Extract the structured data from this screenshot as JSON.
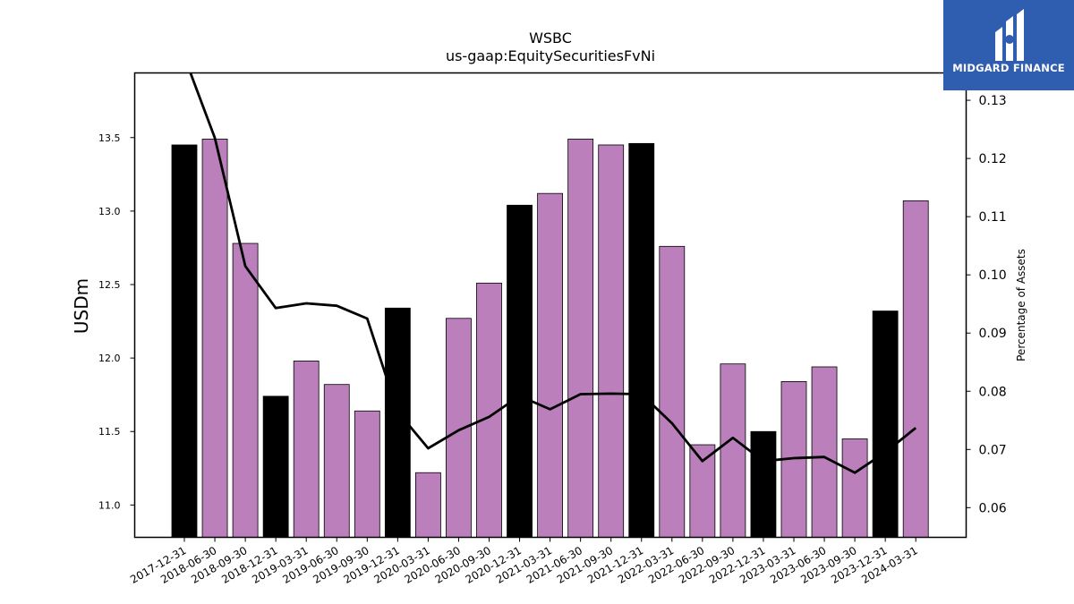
{
  "brand": {
    "name": "MIDGARD FINANCE",
    "bg_color": "#2f5db0"
  },
  "colors": {
    "bar_black": "#000000",
    "bar_purple": "#bb7fbc",
    "line": "#000000"
  },
  "chart_data": {
    "type": "bar",
    "title": "WSBC",
    "subtitle": "us-gaap:EquitySecuritiesFvNi",
    "ylabel": "USDm",
    "y2label": "Percentage of Assets",
    "categories": [
      "2017-12-31",
      "2018-06-30",
      "2018-09-30",
      "2018-12-31",
      "2019-03-31",
      "2019-06-30",
      "2019-09-30",
      "2019-12-31",
      "2020-03-31",
      "2020-06-30",
      "2020-09-30",
      "2020-12-31",
      "2021-03-31",
      "2021-06-30",
      "2021-09-30",
      "2021-12-31",
      "2022-03-31",
      "2022-06-30",
      "2022-09-30",
      "2022-12-31",
      "2023-03-31",
      "2023-06-30",
      "2023-09-30",
      "2023-12-31",
      "2024-03-31"
    ],
    "series": [
      {
        "axis": "left",
        "kind": "bar",
        "values": [
          13.45,
          13.49,
          12.78,
          11.74,
          11.98,
          11.82,
          11.64,
          12.34,
          11.22,
          12.27,
          12.51,
          13.04,
          13.12,
          13.49,
          13.45,
          13.46,
          12.76,
          11.41,
          11.96,
          11.5,
          11.84,
          11.94,
          11.45,
          12.32,
          13.07
        ],
        "highlight": [
          true,
          false,
          false,
          true,
          false,
          false,
          false,
          true,
          false,
          false,
          false,
          true,
          false,
          false,
          false,
          true,
          false,
          false,
          false,
          true,
          false,
          false,
          false,
          true,
          false
        ]
      },
      {
        "axis": "right",
        "kind": "line",
        "values": [
          0.1375,
          0.1235,
          0.1015,
          0.0943,
          0.0951,
          0.0947,
          0.0925,
          0.0765,
          0.0702,
          0.0733,
          0.0756,
          0.0792,
          0.0769,
          0.0795,
          0.0796,
          0.0795,
          0.0745,
          0.068,
          0.072,
          0.068,
          0.0685,
          0.0687,
          0.066,
          0.0695,
          0.0737
        ]
      }
    ],
    "ylim": [
      10.78,
      13.94
    ],
    "yticks": [
      "11.0",
      "11.5",
      "12.0",
      "12.5",
      "13.0",
      "13.5"
    ],
    "y2lim": [
      0.0549,
      0.1347
    ],
    "y2ticks": [
      "0.06",
      "0.07",
      "0.08",
      "0.09",
      "0.10",
      "0.11",
      "0.12",
      "0.13"
    ],
    "grid": false,
    "legend": "none"
  }
}
